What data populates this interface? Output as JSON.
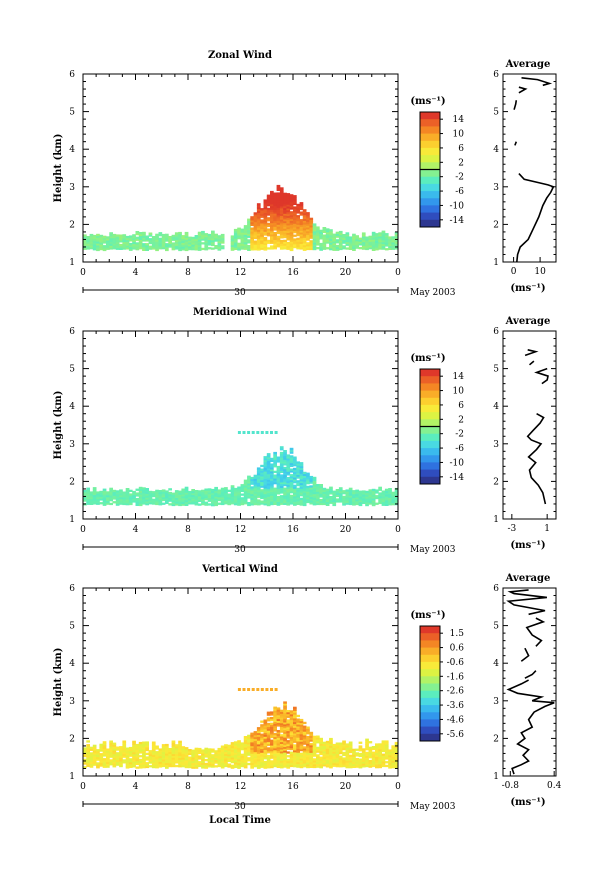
{
  "chart_data": [
    {
      "type": "heatmap",
      "title": "Zonal Wind",
      "ylabel": "Height (km)",
      "xlabel": "",
      "x_ticks": [
        "0",
        "4",
        "8",
        "12",
        "16",
        "20",
        "0"
      ],
      "xlim": [
        0,
        24
      ],
      "y_ticks": [
        "1",
        "2",
        "3",
        "4",
        "5",
        "6"
      ],
      "ylim": [
        1,
        6
      ],
      "day_label": "30",
      "month_label": "May 2003",
      "colorbar": {
        "unit": "(ms⁻¹)",
        "ticks": [
          "14",
          "10",
          "6",
          "2",
          "-2",
          "-6",
          "-10",
          "-14"
        ],
        "range": [
          -16,
          16
        ],
        "zero_line": 0
      },
      "approx_extent": {
        "low_layer_km": [
          1.3,
          1.8
        ],
        "afternoon_max_km": 3.0,
        "afternoon_hours": [
          12,
          17.5
        ]
      },
      "average_profile": {
        "title": "Average",
        "xlabel": "(ms⁻¹)",
        "x_ticks": [
          "0",
          "10"
        ],
        "xlim": [
          -4,
          16
        ],
        "ylim": [
          1,
          6
        ],
        "y_ticks": [
          "1",
          "2",
          "3",
          "4",
          "5",
          "6"
        ],
        "segments": [
          [
            [
              1.2,
              1.0
            ],
            [
              1.5,
              1.2
            ],
            [
              2.5,
              1.4
            ],
            [
              5.5,
              1.6
            ],
            [
              7.5,
              1.9
            ],
            [
              9.5,
              2.2
            ],
            [
              11.0,
              2.5
            ],
            [
              12.5,
              2.7
            ],
            [
              14.0,
              2.85
            ],
            [
              15.0,
              3.0
            ],
            [
              13.0,
              3.05
            ],
            [
              10.0,
              3.1
            ],
            [
              4.0,
              3.2
            ],
            [
              2.0,
              3.35
            ]
          ],
          [
            [
              0.5,
              4.1
            ],
            [
              1.0,
              4.2
            ]
          ],
          [
            [
              0.2,
              5.05
            ],
            [
              0.8,
              5.2
            ],
            [
              1.0,
              5.3
            ]
          ],
          [
            [
              2.0,
              5.5
            ],
            [
              4.5,
              5.6
            ],
            [
              2.0,
              5.65
            ]
          ],
          [
            [
              3.0,
              5.9
            ],
            [
              9.0,
              5.85
            ],
            [
              13.5,
              5.75
            ],
            [
              11.0,
              5.7
            ]
          ]
        ]
      }
    },
    {
      "type": "heatmap",
      "title": "Meridional Wind",
      "ylabel": "Height (km)",
      "xlabel": "",
      "x_ticks": [
        "0",
        "4",
        "8",
        "12",
        "16",
        "20",
        "0"
      ],
      "xlim": [
        0,
        24
      ],
      "y_ticks": [
        "1",
        "2",
        "3",
        "4",
        "5",
        "6"
      ],
      "ylim": [
        1,
        6
      ],
      "day_label": "30",
      "month_label": "May 2003",
      "colorbar": {
        "unit": "(ms⁻¹)",
        "ticks": [
          "14",
          "10",
          "6",
          "2",
          "-2",
          "-6",
          "-10",
          "-14"
        ],
        "range": [
          -16,
          16
        ],
        "zero_line": 0
      },
      "approx_extent": {
        "low_layer_km": [
          1.3,
          1.9
        ],
        "afternoon_max_km": 2.8,
        "afternoon_hours": [
          11.5,
          18.5
        ],
        "isolated_layer_km": 3.3
      },
      "average_profile": {
        "title": "Average",
        "xlabel": "(ms⁻¹)",
        "x_ticks": [
          "-3",
          "1"
        ],
        "xlim": [
          -4,
          2
        ],
        "ylim": [
          1,
          6
        ],
        "y_ticks": [
          "1",
          "2",
          "3",
          "4",
          "5",
          "6"
        ],
        "segments": [
          [
            [
              0.8,
              1.4
            ],
            [
              0.5,
              1.7
            ],
            [
              0.0,
              1.9
            ],
            [
              -0.8,
              2.1
            ],
            [
              -1.0,
              2.3
            ],
            [
              -0.3,
              2.5
            ],
            [
              -1.1,
              2.65
            ],
            [
              -0.2,
              2.85
            ],
            [
              0.3,
              3.0
            ],
            [
              -0.8,
              3.1
            ],
            [
              -1.2,
              3.2
            ],
            [
              -0.6,
              3.35
            ],
            [
              0.2,
              3.55
            ],
            [
              0.6,
              3.7
            ],
            [
              -0.2,
              3.8
            ]
          ],
          [
            [
              0.4,
              4.6
            ],
            [
              1.0,
              4.7
            ],
            [
              1.1,
              4.8
            ],
            [
              -0.2,
              4.9
            ],
            [
              1.0,
              5.0
            ]
          ],
          [
            [
              -1.0,
              5.1
            ],
            [
              -0.5,
              5.2
            ]
          ],
          [
            [
              -1.5,
              5.35
            ],
            [
              -0.3,
              5.45
            ],
            [
              -1.2,
              5.5
            ]
          ]
        ]
      }
    },
    {
      "type": "heatmap",
      "title": "Vertical Wind",
      "ylabel": "Height (km)",
      "xlabel": "Local Time",
      "x_ticks": [
        "0",
        "4",
        "8",
        "12",
        "16",
        "20",
        "0"
      ],
      "xlim": [
        0,
        24
      ],
      "y_ticks": [
        "1",
        "2",
        "3",
        "4",
        "5",
        "6"
      ],
      "ylim": [
        1,
        6
      ],
      "day_label": "30",
      "month_label": "May 2003",
      "colorbar": {
        "unit": "(ms⁻¹)",
        "ticks": [
          "1.5",
          "0.6",
          "-0.6",
          "-1.6",
          "-2.6",
          "-3.6",
          "-4.6",
          "-5.6"
        ],
        "range": [
          -6.0,
          2.0
        ],
        "zero_line": null
      },
      "approx_extent": {
        "low_layer_km": [
          1.2,
          2.0
        ],
        "afternoon_max_km": 2.9,
        "afternoon_hours": [
          11.5,
          18.5
        ],
        "isolated_layer_km": 3.3
      },
      "average_profile": {
        "title": "Average",
        "xlabel": "(ms⁻¹)",
        "x_ticks": [
          "-0.8",
          "0.4"
        ],
        "xlim": [
          -1.0,
          0.45
        ],
        "ylim": [
          1,
          6
        ],
        "y_ticks": [
          "1",
          "2",
          "3",
          "4",
          "5",
          "6"
        ],
        "segments": [
          [
            [
              -0.7,
              1.05
            ],
            [
              -0.75,
              1.2
            ],
            [
              -0.5,
              1.3
            ],
            [
              -0.3,
              1.4
            ],
            [
              -0.45,
              1.55
            ],
            [
              -0.3,
              1.7
            ],
            [
              -0.6,
              1.85
            ],
            [
              -0.4,
              2.0
            ],
            [
              -0.5,
              2.15
            ],
            [
              -0.2,
              2.3
            ],
            [
              -0.3,
              2.5
            ],
            [
              -0.15,
              2.7
            ],
            [
              0.15,
              2.85
            ],
            [
              0.4,
              2.95
            ],
            [
              -0.2,
              3.0
            ],
            [
              0.05,
              3.1
            ],
            [
              -0.6,
              3.2
            ],
            [
              -0.85,
              3.3
            ],
            [
              -0.5,
              3.45
            ],
            [
              -0.3,
              3.55
            ]
          ],
          [
            [
              -0.4,
              3.6
            ],
            [
              -0.2,
              3.7
            ],
            [
              -0.1,
              3.8
            ]
          ],
          [
            [
              -0.5,
              4.05
            ],
            [
              -0.3,
              4.2
            ],
            [
              -0.4,
              4.4
            ]
          ],
          [
            [
              -0.1,
              4.45
            ],
            [
              0.05,
              4.6
            ],
            [
              -0.2,
              4.75
            ],
            [
              -0.35,
              4.95
            ],
            [
              0.1,
              5.1
            ],
            [
              -0.1,
              5.2
            ]
          ],
          [
            [
              -0.3,
              5.3
            ],
            [
              0.15,
              5.4
            ],
            [
              -0.7,
              5.55
            ],
            [
              -0.85,
              5.65
            ],
            [
              0.2,
              5.75
            ],
            [
              -0.7,
              5.85
            ],
            [
              -0.8,
              5.9
            ],
            [
              -0.3,
              5.95
            ]
          ]
        ]
      }
    }
  ],
  "colors": {
    "palette": [
      "#2b2e78",
      "#2f47b8",
      "#2f78e6",
      "#33a9f0",
      "#46d6e8",
      "#5ef0b8",
      "#9af27a",
      "#d7f545",
      "#fde837",
      "#fbc02a",
      "#f58c24",
      "#ea5a27",
      "#d8242b"
    ],
    "axis": "#000000"
  }
}
